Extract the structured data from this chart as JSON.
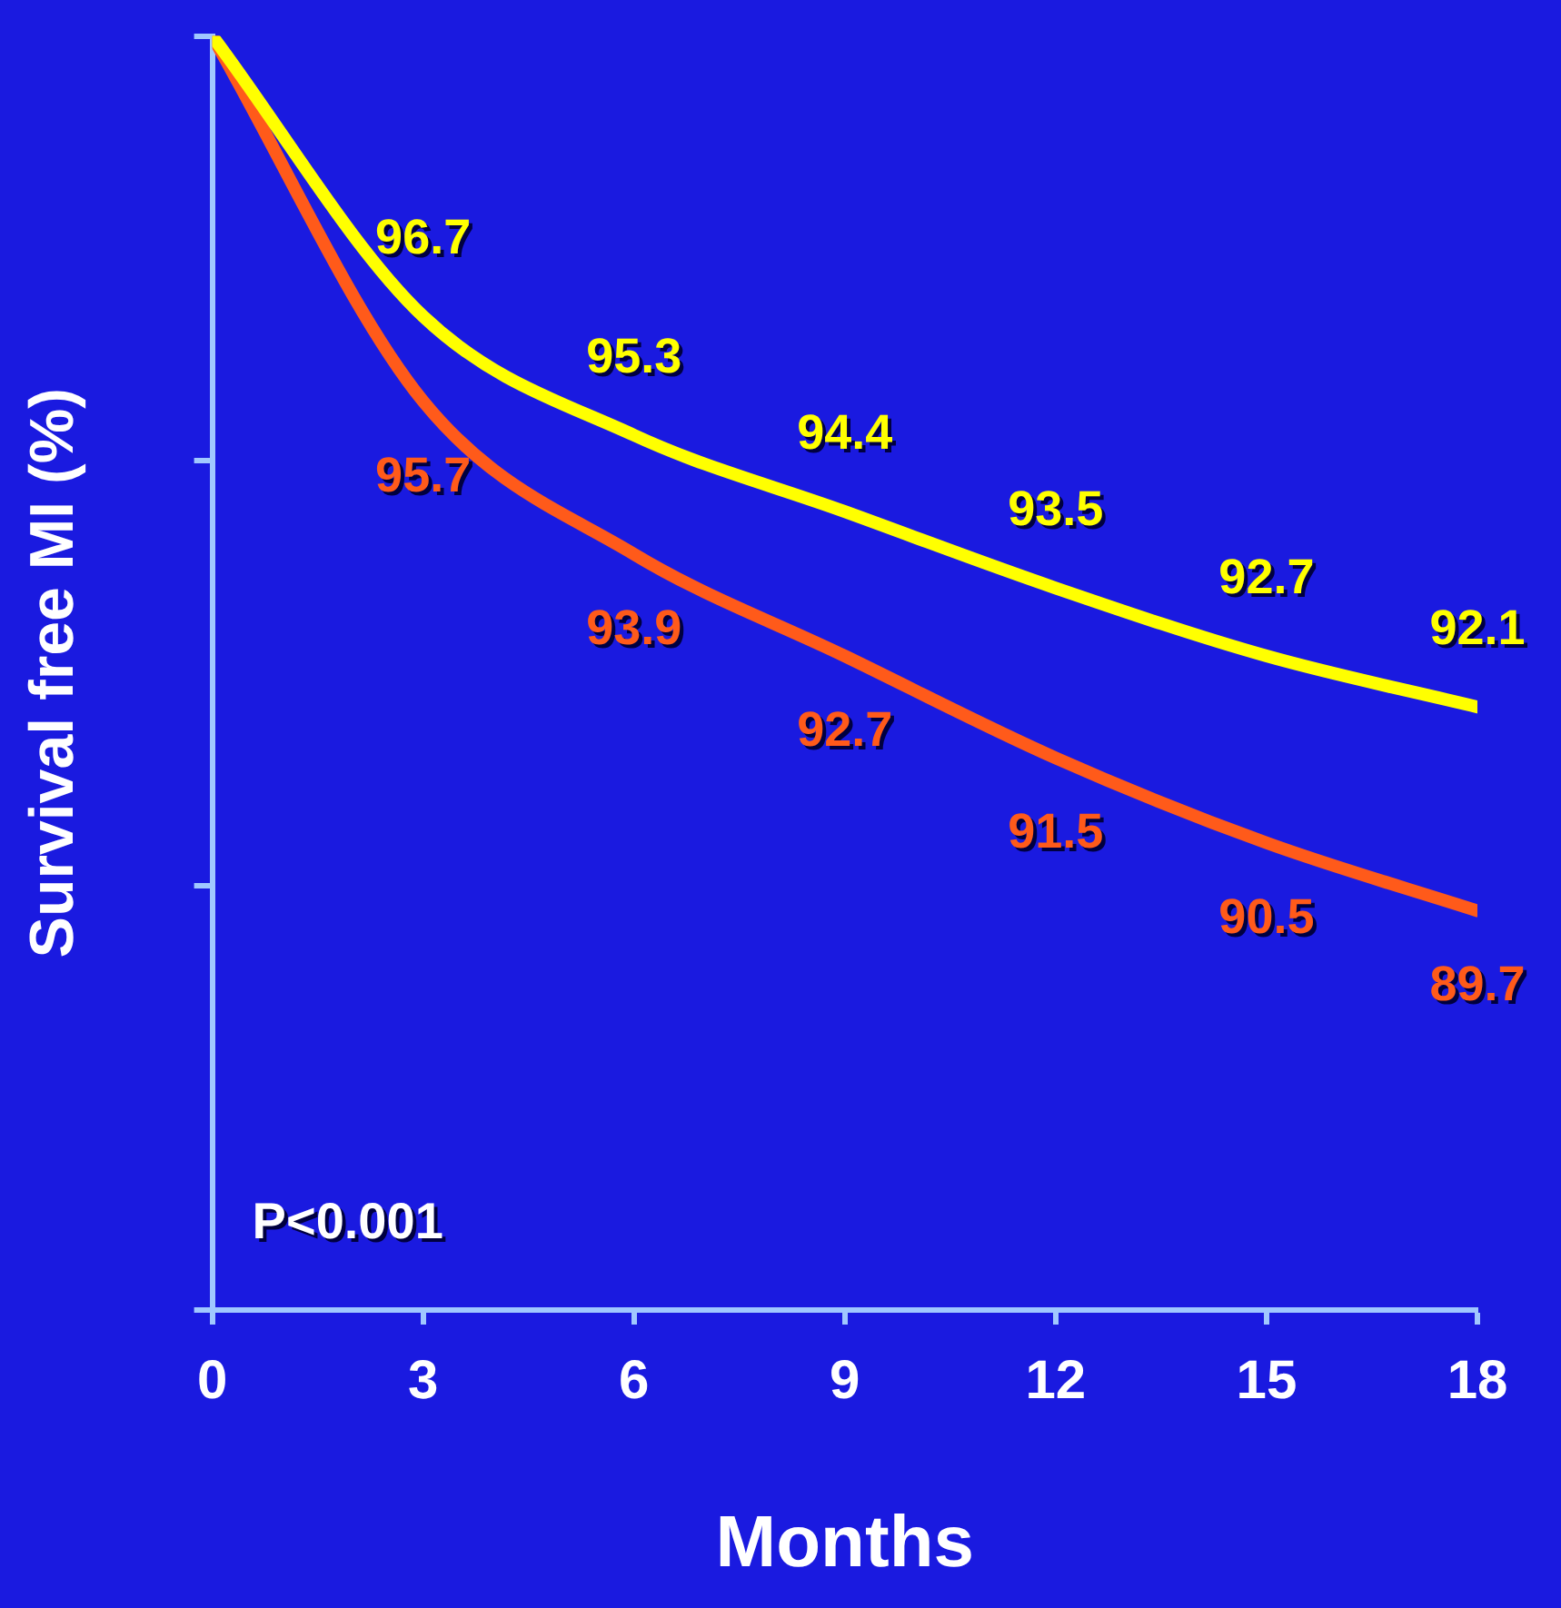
{
  "chart_data": {
    "type": "line",
    "xlabel": "Months",
    "ylabel": "Survival free MI (%)",
    "x": [
      0,
      3,
      6,
      9,
      12,
      15,
      18
    ],
    "xlim": [
      0,
      18
    ],
    "xticks": [
      0,
      3,
      6,
      9,
      12,
      15,
      18
    ],
    "ylim": [
      85,
      100
    ],
    "yticks": [
      {
        "value": 85,
        "label": null
      },
      {
        "value": 90,
        "label": null
      },
      {
        "value": 95,
        "label": null
      },
      {
        "value": 100,
        "label": null
      }
    ],
    "grid": false,
    "legend": false,
    "series": [
      {
        "color": "#ffff00",
        "values": [
          100,
          96.7,
          95.3,
          94.4,
          93.5,
          92.7,
          92.1
        ],
        "value_labels": [
          null,
          "96.7",
          "95.3",
          "94.4",
          "93.5",
          "92.7",
          "92.1"
        ]
      },
      {
        "color": "#ff5a1a",
        "values": [
          100,
          95.7,
          93.9,
          92.7,
          91.5,
          90.5,
          89.7
        ],
        "value_labels": [
          null,
          "95.7",
          "93.9",
          "92.7",
          "91.5",
          "90.5",
          "89.7"
        ]
      }
    ],
    "annotations": [
      "P<0.001"
    ]
  }
}
